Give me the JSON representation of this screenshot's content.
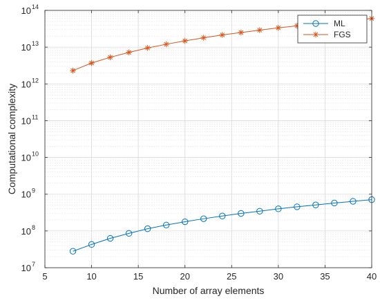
{
  "chart_data": {
    "type": "line",
    "xlabel": "Number of array elements",
    "ylabel": "Computational complexity",
    "xlim": [
      5,
      40
    ],
    "ylim": [
      10000000,
      100000000000000
    ],
    "y_scale": "log",
    "x_ticks": [
      "5",
      "10",
      "15",
      "20",
      "25",
      "30",
      "35",
      "40"
    ],
    "y_tick_bases": [
      "10",
      "10",
      "10",
      "10",
      "10",
      "10",
      "10",
      "10"
    ],
    "y_tick_exponents": [
      "7",
      "8",
      "9",
      "10",
      "11",
      "12",
      "13",
      "14"
    ],
    "grid": true,
    "minor_grid": true,
    "legend_position": "top-right",
    "x": [
      8,
      10,
      12,
      14,
      16,
      18,
      20,
      22,
      24,
      26,
      28,
      30,
      32,
      34,
      36,
      38,
      40
    ],
    "series": [
      {
        "name": "ML",
        "color": "#0072BD",
        "marker": "circle",
        "values": [
          28000000,
          43000000,
          63000000,
          86000000,
          115000000,
          145000000,
          178000000,
          215000000,
          255000000,
          300000000,
          345000000,
          400000000,
          455000000,
          510000000,
          575000000,
          640000000,
          710000000
        ]
      },
      {
        "name": "FGS",
        "color": "#D95319",
        "marker": "asterisk",
        "values": [
          2300000000000,
          3700000000000,
          5300000000000,
          7200000000000,
          9500000000000,
          12000000000000,
          14800000000000,
          18000000000000,
          21500000000000,
          25000000000000,
          29000000000000,
          33500000000000,
          38000000000000,
          43000000000000,
          48500000000000,
          54000000000000,
          60000000000000
        ]
      }
    ]
  }
}
